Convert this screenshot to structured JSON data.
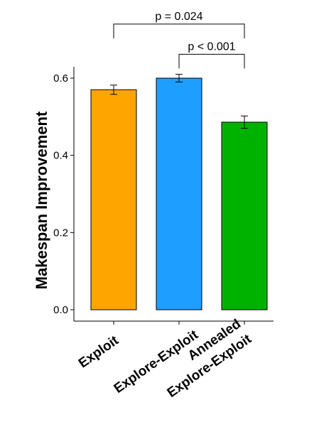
{
  "chart_data": {
    "type": "bar",
    "title": "",
    "xlabel": "",
    "ylabel": "Makespan Improvement",
    "ylim": [
      0,
      0.64
    ],
    "yticks": [
      0.0,
      0.2,
      0.4,
      0.6
    ],
    "ytick_labels": [
      "0.0",
      "0.2",
      "0.4",
      "0.6"
    ],
    "grid": false,
    "legend": "none",
    "categories": [
      {
        "lines": [
          "Exploit"
        ]
      },
      {
        "lines": [
          "Explore-Exploit"
        ]
      },
      {
        "lines": [
          "Annealed",
          "Explore-Exploit"
        ]
      }
    ],
    "values": [
      0.57,
      0.6,
      0.486
    ],
    "errors": [
      0.012,
      0.01,
      0.016
    ],
    "colors": [
      "#FFA500",
      "#1E9EFF",
      "#00B200"
    ],
    "annotations": [
      {
        "label": "p = 0.024",
        "from": 0,
        "to": 2,
        "y": 0.74,
        "drop": 0.037
      },
      {
        "label": "p < 0.001",
        "from": 1,
        "to": 2,
        "y": 0.662,
        "drop": 0.037
      }
    ]
  }
}
